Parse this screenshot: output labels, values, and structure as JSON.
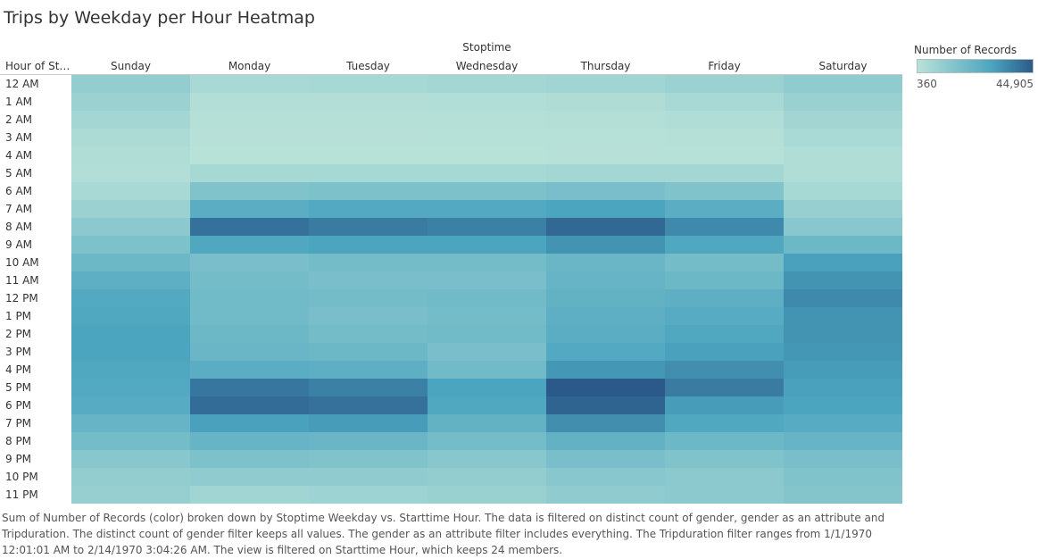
{
  "title": "Trips by Weekday per Hour Heatmap",
  "column_group_label": "Stoptime",
  "row_header": "Hour of Sta..",
  "legend": {
    "title": "Number of Records",
    "min_label": "360",
    "max_label": "44,905",
    "color_low": "#b8e2d8",
    "color_mid": "#4aa4bf",
    "color_high": "#2b5a8a"
  },
  "caption": "Sum of Number of Records (color) broken down by Stoptime Weekday vs. Starttime Hour. The data is filtered on distinct count of gender, gender as an attribute and Tripduration. The distinct count of gender filter keeps all values. The gender as an attribute filter includes everything. The Tripduration filter ranges from 1/1/1970 12:01:01 AM to 2/14/1970 3:04:26 AM. The view is filtered on Starttime Hour, which keeps 24 members.",
  "chart_data": {
    "type": "heatmap",
    "title": "Trips by Weekday per Hour Heatmap",
    "xlabel": "Stoptime",
    "ylabel": "Hour of Sta..",
    "x": [
      "Sunday",
      "Monday",
      "Tuesday",
      "Wednesday",
      "Thursday",
      "Friday",
      "Saturday"
    ],
    "y": [
      "12 AM",
      "1 AM",
      "2 AM",
      "3 AM",
      "4 AM",
      "5 AM",
      "6 AM",
      "7 AM",
      "8 AM",
      "9 AM",
      "10 AM",
      "11 AM",
      "12 PM",
      "1 PM",
      "2 PM",
      "3 PM",
      "4 PM",
      "5 PM",
      "6 PM",
      "7 PM",
      "8 PM",
      "9 PM",
      "10 PM",
      "11 PM"
    ],
    "color_range": [
      360,
      44905
    ],
    "values": [
      [
        10000,
        4500,
        5000,
        5500,
        6500,
        8000,
        11000
      ],
      [
        8000,
        2000,
        2000,
        2200,
        2800,
        4500,
        8500
      ],
      [
        5500,
        1200,
        1200,
        1300,
        1600,
        2500,
        6000
      ],
      [
        3500,
        700,
        700,
        800,
        900,
        1500,
        4000
      ],
      [
        2500,
        500,
        500,
        500,
        600,
        900,
        2500
      ],
      [
        2000,
        5000,
        5000,
        5000,
        5500,
        5500,
        2500
      ],
      [
        4500,
        15000,
        16000,
        16000,
        17000,
        15000,
        5000
      ],
      [
        8000,
        25000,
        27000,
        27000,
        29000,
        25000,
        9000
      ],
      [
        12000,
        40000,
        38000,
        37000,
        42000,
        35000,
        13000
      ],
      [
        16000,
        28000,
        29000,
        29000,
        33000,
        28000,
        20000
      ],
      [
        20000,
        17000,
        18000,
        18000,
        21000,
        18000,
        30000
      ],
      [
        24000,
        18000,
        17000,
        17000,
        22000,
        20000,
        33000
      ],
      [
        27000,
        19000,
        18000,
        19000,
        23000,
        24000,
        35000
      ],
      [
        28000,
        19000,
        17000,
        18000,
        24000,
        26000,
        33000
      ],
      [
        29000,
        20000,
        18000,
        19000,
        25000,
        28000,
        33000
      ],
      [
        29000,
        21000,
        20000,
        17000,
        27000,
        30000,
        32000
      ],
      [
        28000,
        25000,
        24000,
        19000,
        32000,
        34000,
        31000
      ],
      [
        27000,
        39000,
        37000,
        29000,
        44905,
        38000,
        30000
      ],
      [
        26000,
        41000,
        40000,
        28000,
        43000,
        31000,
        29000
      ],
      [
        22000,
        30000,
        31000,
        23000,
        34000,
        28000,
        26000
      ],
      [
        18000,
        22000,
        21000,
        18000,
        23000,
        20000,
        22000
      ],
      [
        13000,
        16000,
        15000,
        13000,
        17000,
        15000,
        17000
      ],
      [
        10000,
        11000,
        11000,
        10000,
        13000,
        12000,
        15000
      ],
      [
        9000,
        6500,
        7500,
        8500,
        11000,
        12000,
        14000
      ]
    ]
  }
}
